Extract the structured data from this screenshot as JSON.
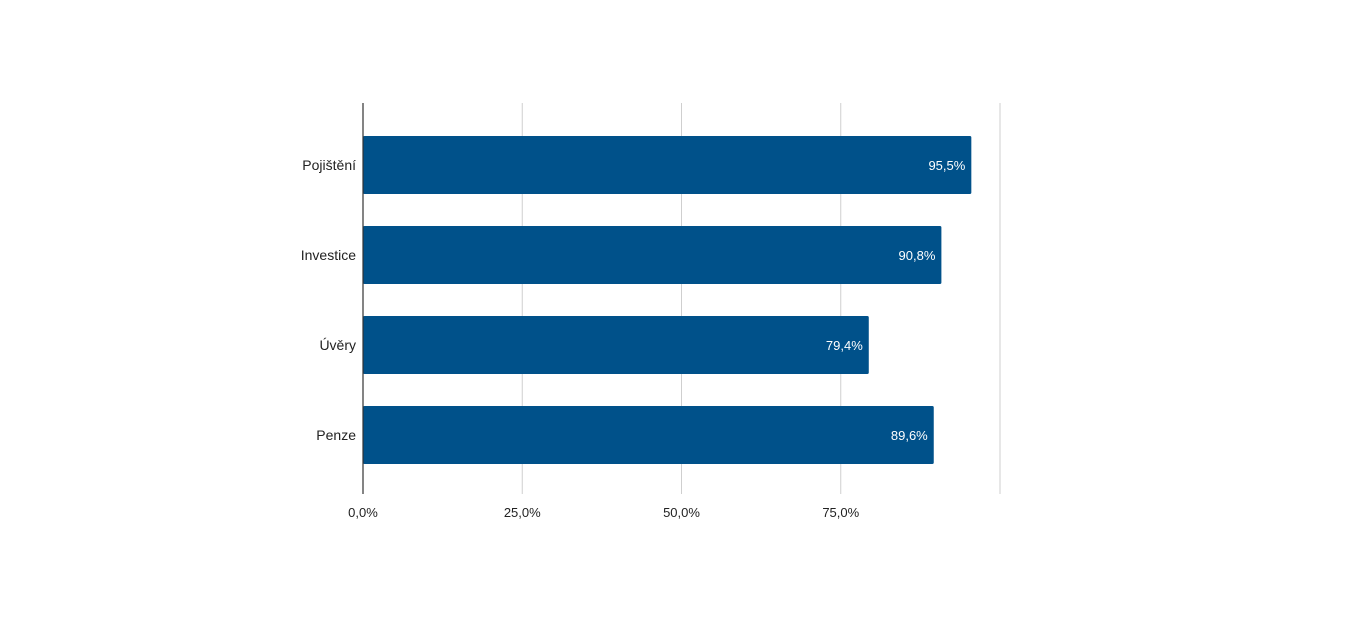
{
  "chart_data": {
    "type": "bar",
    "orientation": "horizontal",
    "categories": [
      "Pojištění",
      "Investice",
      "Úvěry",
      "Penze"
    ],
    "values": [
      95.5,
      90.8,
      79.4,
      89.6
    ],
    "data_labels": [
      "95,5%",
      "90,8%",
      "79,4%",
      "89,6%"
    ],
    "x_ticks": [
      0,
      25,
      50,
      75,
      100
    ],
    "x_tick_labels": [
      "0,0%",
      "25,0%",
      "50,0%",
      "75,0%",
      ""
    ],
    "xlim": [
      0,
      100
    ],
    "title": "",
    "xlabel": "",
    "ylabel": "",
    "grid": true,
    "legend": "none",
    "bar_color": "#00518a"
  }
}
